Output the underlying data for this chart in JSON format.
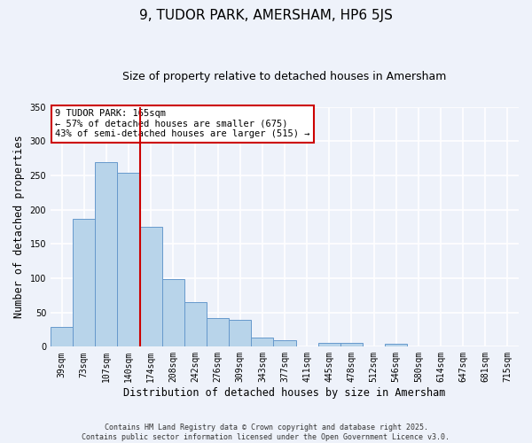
{
  "title": "9, TUDOR PARK, AMERSHAM, HP6 5JS",
  "subtitle": "Size of property relative to detached houses in Amersham",
  "xlabel": "Distribution of detached houses by size in Amersham",
  "ylabel": "Number of detached properties",
  "bar_labels": [
    "39sqm",
    "73sqm",
    "107sqm",
    "140sqm",
    "174sqm",
    "208sqm",
    "242sqm",
    "276sqm",
    "309sqm",
    "343sqm",
    "377sqm",
    "411sqm",
    "445sqm",
    "478sqm",
    "512sqm",
    "546sqm",
    "580sqm",
    "614sqm",
    "647sqm",
    "681sqm",
    "715sqm"
  ],
  "bar_values": [
    29,
    187,
    269,
    254,
    175,
    99,
    65,
    42,
    39,
    13,
    9,
    0,
    6,
    5,
    1,
    4,
    1,
    0,
    0,
    0,
    1
  ],
  "bar_color": "#b8d4ea",
  "bar_edge_color": "#6699cc",
  "vline_index": 4,
  "vline_color": "#cc0000",
  "annotation_title": "9 TUDOR PARK: 165sqm",
  "annotation_line1": "← 57% of detached houses are smaller (675)",
  "annotation_line2": "43% of semi-detached houses are larger (515) →",
  "annotation_box_color": "#ffffff",
  "annotation_box_edge": "#cc0000",
  "ylim": [
    0,
    350
  ],
  "yticks": [
    0,
    50,
    100,
    150,
    200,
    250,
    300,
    350
  ],
  "bg_color": "#eef2fa",
  "footer1": "Contains HM Land Registry data © Crown copyright and database right 2025.",
  "footer2": "Contains public sector information licensed under the Open Government Licence v3.0.",
  "grid_color": "#ffffff",
  "title_fontsize": 11,
  "subtitle_fontsize": 9,
  "tick_fontsize": 7,
  "label_fontsize": 8.5,
  "footer_fontsize": 6
}
